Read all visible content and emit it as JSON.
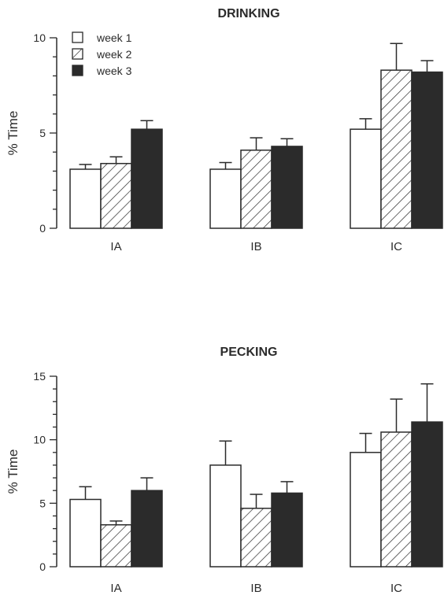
{
  "chart_data": [
    {
      "type": "bar",
      "title": "DRINKING",
      "ylabel": "% Time",
      "ylim": [
        0,
        10
      ],
      "yticks": [
        "0",
        "5",
        "10"
      ],
      "categories": [
        "IA",
        "IB",
        "IC"
      ],
      "series": [
        {
          "name": "week 1",
          "values": [
            3.1,
            3.1,
            5.2
          ],
          "errors": [
            0.25,
            0.35,
            0.55
          ]
        },
        {
          "name": "week 2",
          "values": [
            3.4,
            4.1,
            8.3
          ],
          "errors": [
            0.35,
            0.65,
            1.4
          ]
        },
        {
          "name": "week 3",
          "values": [
            5.2,
            4.3,
            8.2
          ],
          "errors": [
            0.45,
            0.4,
            0.6
          ]
        }
      ],
      "legend": "top-left",
      "grid": false
    },
    {
      "type": "bar",
      "title": "PECKING",
      "ylabel": "% Time",
      "ylim": [
        0,
        15
      ],
      "yticks": [
        "0",
        "5",
        "10",
        "15"
      ],
      "categories": [
        "IA",
        "IB",
        "IC"
      ],
      "series": [
        {
          "name": "week 1",
          "values": [
            5.3,
            8.0,
            9.0
          ],
          "errors": [
            1.0,
            1.9,
            1.5
          ]
        },
        {
          "name": "week 2",
          "values": [
            3.3,
            4.6,
            10.6
          ],
          "errors": [
            0.3,
            1.1,
            2.6
          ]
        },
        {
          "name": "week 3",
          "values": [
            6.0,
            5.8,
            11.4
          ],
          "errors": [
            1.0,
            0.9,
            3.0
          ]
        }
      ],
      "grid": false
    }
  ],
  "colors": {
    "ink": "#2b2b2b",
    "week1_fill": "#ffffff",
    "week2_hatch": "#2b2b2b",
    "week3_fill": "#2b2b2b"
  }
}
